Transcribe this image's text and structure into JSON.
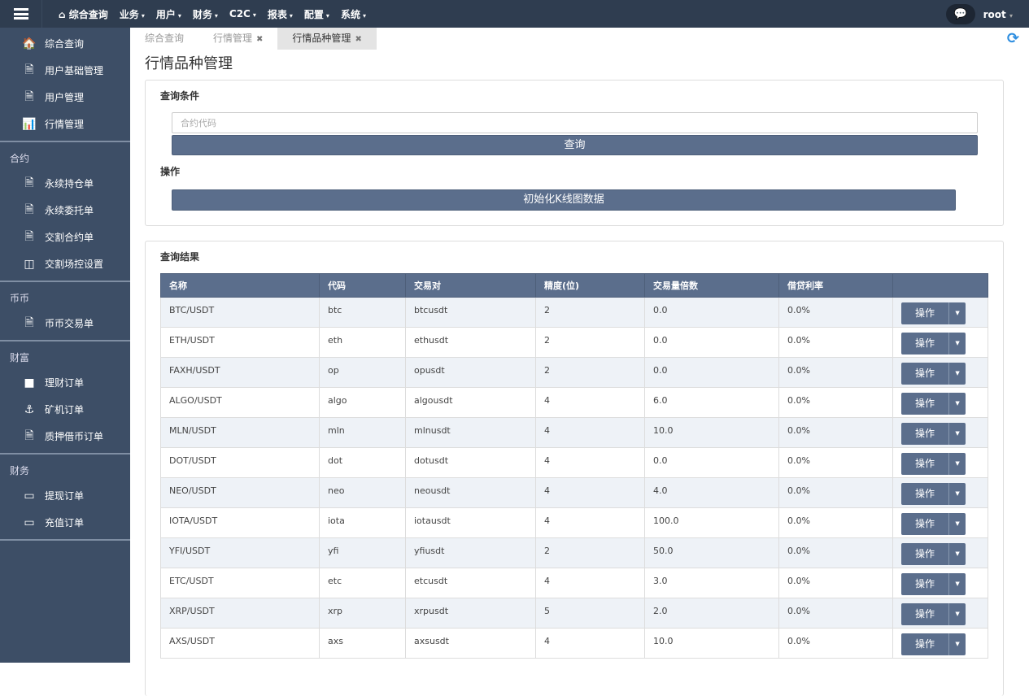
{
  "topbar": {
    "nav": [
      {
        "label": "综合查询",
        "icon": "home-icon"
      },
      {
        "label": "业务"
      },
      {
        "label": "用户"
      },
      {
        "label": "财务"
      },
      {
        "label": "C2C"
      },
      {
        "label": "报表"
      },
      {
        "label": "配置"
      },
      {
        "label": "系统"
      }
    ],
    "user": "root"
  },
  "sidebar": {
    "top_items": [
      {
        "label": "综合查询",
        "icon": "home-icon"
      },
      {
        "label": "用户基础管理",
        "icon": "file-icon"
      },
      {
        "label": "用户管理",
        "icon": "file-icon"
      },
      {
        "label": "行情管理",
        "icon": "bar-chart-icon"
      }
    ],
    "sections": [
      {
        "title": "合约",
        "items": [
          {
            "label": "永续持仓单",
            "icon": "file-icon"
          },
          {
            "label": "永续委托单",
            "icon": "file-icon"
          },
          {
            "label": "交割合约单",
            "icon": "file-icon"
          },
          {
            "label": "交割场控设置",
            "icon": "columns-icon"
          }
        ]
      },
      {
        "title": "币币",
        "items": [
          {
            "label": "币币交易单",
            "icon": "file-icon"
          }
        ]
      },
      {
        "title": "财富",
        "items": [
          {
            "label": "理财订单",
            "icon": "folder-icon"
          },
          {
            "label": "矿机订单",
            "icon": "anchor-icon"
          },
          {
            "label": "质押借币订单",
            "icon": "file-icon"
          }
        ]
      },
      {
        "title": "财务",
        "items": [
          {
            "label": "提现订单",
            "icon": "credit-card-icon"
          },
          {
            "label": "充值订单",
            "icon": "credit-card-icon"
          }
        ]
      }
    ]
  },
  "tabs": [
    {
      "label": "综合查询",
      "closable": false
    },
    {
      "label": "行情管理",
      "closable": true
    },
    {
      "label": "行情品种管理",
      "closable": true,
      "active": true
    }
  ],
  "page_title": "行情品种管理",
  "query": {
    "title": "查询条件",
    "placeholder": "合约代码",
    "value": "",
    "button": "查询",
    "ops_title": "操作",
    "init_button": "初始化K线图数据"
  },
  "results": {
    "title": "查询结果",
    "columns": [
      "名称",
      "代码",
      "交易对",
      "精度(位)",
      "交易量倍数",
      "借贷利率",
      ""
    ],
    "action_label": "操作",
    "rows": [
      [
        "BTC/USDT",
        "btc",
        "btcusdt",
        "2",
        "0.0",
        "0.0%"
      ],
      [
        "ETH/USDT",
        "eth",
        "ethusdt",
        "2",
        "0.0",
        "0.0%"
      ],
      [
        "FAXH/USDT",
        "op",
        "opusdt",
        "2",
        "0.0",
        "0.0%"
      ],
      [
        "ALGO/USDT",
        "algo",
        "algousdt",
        "4",
        "6.0",
        "0.0%"
      ],
      [
        "MLN/USDT",
        "mln",
        "mlnusdt",
        "4",
        "10.0",
        "0.0%"
      ],
      [
        "DOT/USDT",
        "dot",
        "dotusdt",
        "4",
        "0.0",
        "0.0%"
      ],
      [
        "NEO/USDT",
        "neo",
        "neousdt",
        "4",
        "4.0",
        "0.0%"
      ],
      [
        "IOTA/USDT",
        "iota",
        "iotausdt",
        "4",
        "100.0",
        "0.0%"
      ],
      [
        "YFI/USDT",
        "yfi",
        "yfiusdt",
        "2",
        "50.0",
        "0.0%"
      ],
      [
        "ETC/USDT",
        "etc",
        "etcusdt",
        "4",
        "3.0",
        "0.0%"
      ],
      [
        "XRP/USDT",
        "xrp",
        "xrpusdt",
        "5",
        "2.0",
        "0.0%"
      ],
      [
        "AXS/USDT",
        "axs",
        "axsusdt",
        "4",
        "10.0",
        "0.0%"
      ]
    ]
  },
  "colors": {
    "topbar": "#2f3d50",
    "sidebar": "#3d4e66",
    "accent": "#5b6e8c",
    "refresh": "#2e8ee0"
  }
}
